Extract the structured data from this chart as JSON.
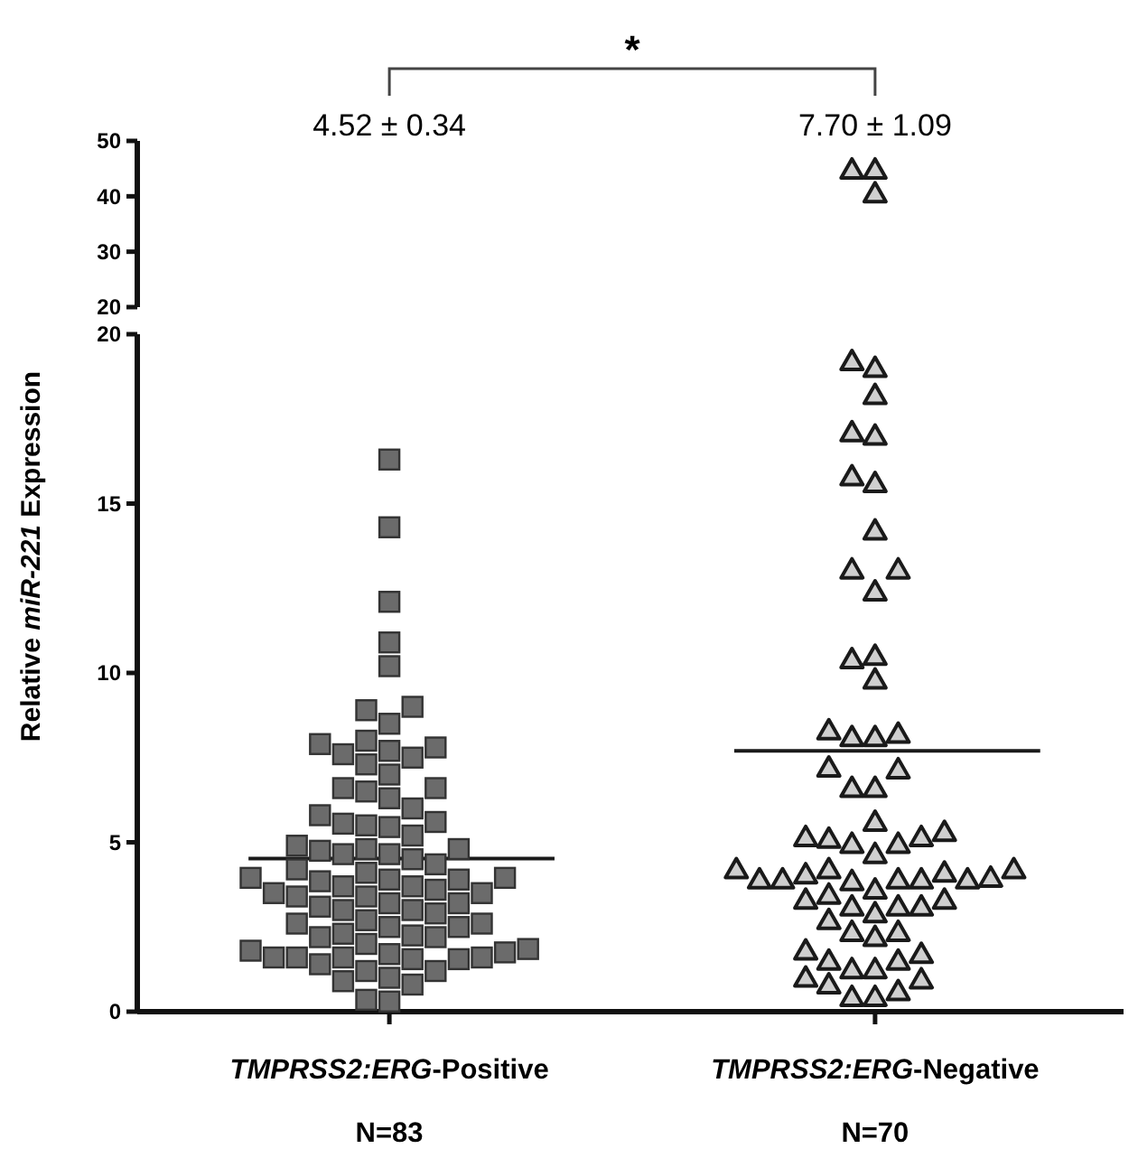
{
  "chart_data": [
    {
      "type": "scatter",
      "categories": [
        "TMPRSS2:ERG-Positive",
        "TMPRSS2:ERG-Negative"
      ],
      "ylim": [
        20,
        50
      ],
      "yticks": [
        20,
        30,
        40,
        50
      ],
      "tick_labels": "y",
      "grid": false,
      "annotations": [
        "*",
        "4.52 ± 0.34",
        "7.70 ± 1.09"
      ],
      "series": [
        {
          "marker": "triangle",
          "color": "#1a1a1a",
          "x": [
            "TMPRSS2:ERG-Negative",
            "TMPRSS2:ERG-Negative",
            "TMPRSS2:ERG-Negative"
          ],
          "values": [
            44.8,
            44.8,
            40.5
          ]
        }
      ]
    },
    {
      "type": "scatter",
      "categories": [
        "TMPRSS2:ERG-Positive",
        "TMPRSS2:ERG-Negative"
      ],
      "ylim": [
        0,
        20
      ],
      "yticks": [
        0,
        5,
        10,
        15,
        20
      ],
      "grid": false,
      "ylabel": "Relative miR-221 Expression",
      "annotations": [
        "N=83",
        "N=70"
      ],
      "ref_lines": [
        {
          "axis": "y",
          "value": 4.52,
          "color": "#1a1a1a"
        },
        {
          "axis": "y",
          "value": 7.7,
          "color": "#1a1a1a"
        }
      ],
      "series": [
        {
          "marker": "square",
          "color": "#6b6b6b",
          "x": [
            "TMPRSS2:ERG-Positive",
            "TMPRSS2:ERG-Positive",
            "TMPRSS2:ERG-Positive",
            "TMPRSS2:ERG-Positive",
            "TMPRSS2:ERG-Positive",
            "TMPRSS2:ERG-Positive",
            "TMPRSS2:ERG-Positive",
            "TMPRSS2:ERG-Positive",
            "TMPRSS2:ERG-Positive",
            "TMPRSS2:ERG-Positive",
            "TMPRSS2:ERG-Positive",
            "TMPRSS2:ERG-Positive",
            "TMPRSS2:ERG-Positive",
            "TMPRSS2:ERG-Positive",
            "TMPRSS2:ERG-Positive",
            "TMPRSS2:ERG-Positive",
            "TMPRSS2:ERG-Positive",
            "TMPRSS2:ERG-Positive",
            "TMPRSS2:ERG-Positive",
            "TMPRSS2:ERG-Positive",
            "TMPRSS2:ERG-Positive",
            "TMPRSS2:ERG-Positive",
            "TMPRSS2:ERG-Positive",
            "TMPRSS2:ERG-Positive",
            "TMPRSS2:ERG-Positive",
            "TMPRSS2:ERG-Positive",
            "TMPRSS2:ERG-Positive",
            "TMPRSS2:ERG-Positive",
            "TMPRSS2:ERG-Positive",
            "TMPRSS2:ERG-Positive",
            "TMPRSS2:ERG-Positive",
            "TMPRSS2:ERG-Positive",
            "TMPRSS2:ERG-Positive",
            "TMPRSS2:ERG-Positive",
            "TMPRSS2:ERG-Positive",
            "TMPRSS2:ERG-Positive",
            "TMPRSS2:ERG-Positive",
            "TMPRSS2:ERG-Positive",
            "TMPRSS2:ERG-Positive",
            "TMPRSS2:ERG-Positive",
            "TMPRSS2:ERG-Positive",
            "TMPRSS2:ERG-Positive",
            "TMPRSS2:ERG-Positive",
            "TMPRSS2:ERG-Positive",
            "TMPRSS2:ERG-Positive",
            "TMPRSS2:ERG-Positive",
            "TMPRSS2:ERG-Positive",
            "TMPRSS2:ERG-Positive",
            "TMPRSS2:ERG-Positive",
            "TMPRSS2:ERG-Positive",
            "TMPRSS2:ERG-Positive",
            "TMPRSS2:ERG-Positive",
            "TMPRSS2:ERG-Positive",
            "TMPRSS2:ERG-Positive",
            "TMPRSS2:ERG-Positive",
            "TMPRSS2:ERG-Positive",
            "TMPRSS2:ERG-Positive",
            "TMPRSS2:ERG-Positive",
            "TMPRSS2:ERG-Positive",
            "TMPRSS2:ERG-Positive",
            "TMPRSS2:ERG-Positive",
            "TMPRSS2:ERG-Positive",
            "TMPRSS2:ERG-Positive",
            "TMPRSS2:ERG-Positive",
            "TMPRSS2:ERG-Positive",
            "TMPRSS2:ERG-Positive",
            "TMPRSS2:ERG-Positive",
            "TMPRSS2:ERG-Positive",
            "TMPRSS2:ERG-Positive",
            "TMPRSS2:ERG-Positive",
            "TMPRSS2:ERG-Positive",
            "TMPRSS2:ERG-Positive",
            "TMPRSS2:ERG-Positive",
            "TMPRSS2:ERG-Positive",
            "TMPRSS2:ERG-Positive",
            "TMPRSS2:ERG-Positive",
            "TMPRSS2:ERG-Positive",
            "TMPRSS2:ERG-Positive",
            "TMPRSS2:ERG-Positive",
            "TMPRSS2:ERG-Positive",
            "TMPRSS2:ERG-Positive",
            "TMPRSS2:ERG-Positive",
            "TMPRSS2:ERG-Positive"
          ],
          "values": [
            0.3,
            0.35,
            0.8,
            1.2,
            1.0,
            1.2,
            0.9,
            1.6,
            1.55,
            1.6,
            1.4,
            1.85,
            1.75,
            1.8,
            1.55,
            2.0,
            1.6,
            1.6,
            1.7,
            2.25,
            2.2,
            2.6,
            2.2,
            2.3,
            2.5,
            2.5,
            2.6,
            3.2,
            3.1,
            3.0,
            2.7,
            2.9,
            3.0,
            3.2,
            3.6,
            3.5,
            3.4,
            3.4,
            3.5,
            3.7,
            3.85,
            3.9,
            3.9,
            3.7,
            3.95,
            3.95,
            4.2,
            4.1,
            4.35,
            4.8,
            4.65,
            4.5,
            4.65,
            4.75,
            4.8,
            4.9,
            5.2,
            5.45,
            5.6,
            5.5,
            5.55,
            6.0,
            5.8,
            6.3,
            6.5,
            6.6,
            6.6,
            7.0,
            7.3,
            7.5,
            7.6,
            7.7,
            7.8,
            7.9,
            8.0,
            8.5,
            8.9,
            9.0,
            10.2,
            10.9,
            12.1,
            14.3,
            16.3
          ]
        },
        {
          "marker": "triangle",
          "color": "#1a1a1a",
          "x": [
            "TMPRSS2:ERG-Negative",
            "TMPRSS2:ERG-Negative",
            "TMPRSS2:ERG-Negative",
            "TMPRSS2:ERG-Negative",
            "TMPRSS2:ERG-Negative",
            "TMPRSS2:ERG-Negative",
            "TMPRSS2:ERG-Negative",
            "TMPRSS2:ERG-Negative",
            "TMPRSS2:ERG-Negative",
            "TMPRSS2:ERG-Negative",
            "TMPRSS2:ERG-Negative",
            "TMPRSS2:ERG-Negative",
            "TMPRSS2:ERG-Negative",
            "TMPRSS2:ERG-Negative",
            "TMPRSS2:ERG-Negative",
            "TMPRSS2:ERG-Negative",
            "TMPRSS2:ERG-Negative",
            "TMPRSS2:ERG-Negative",
            "TMPRSS2:ERG-Negative",
            "TMPRSS2:ERG-Negative",
            "TMPRSS2:ERG-Negative",
            "TMPRSS2:ERG-Negative",
            "TMPRSS2:ERG-Negative",
            "TMPRSS2:ERG-Negative",
            "TMPRSS2:ERG-Negative",
            "TMPRSS2:ERG-Negative",
            "TMPRSS2:ERG-Negative",
            "TMPRSS2:ERG-Negative",
            "TMPRSS2:ERG-Negative",
            "TMPRSS2:ERG-Negative",
            "TMPRSS2:ERG-Negative",
            "TMPRSS2:ERG-Negative",
            "TMPRSS2:ERG-Negative",
            "TMPRSS2:ERG-Negative",
            "TMPRSS2:ERG-Negative",
            "TMPRSS2:ERG-Negative",
            "TMPRSS2:ERG-Negative",
            "TMPRSS2:ERG-Negative",
            "TMPRSS2:ERG-Negative",
            "TMPRSS2:ERG-Negative",
            "TMPRSS2:ERG-Negative",
            "TMPRSS2:ERG-Negative",
            "TMPRSS2:ERG-Negative",
            "TMPRSS2:ERG-Negative",
            "TMPRSS2:ERG-Negative",
            "TMPRSS2:ERG-Negative",
            "TMPRSS2:ERG-Negative",
            "TMPRSS2:ERG-Negative",
            "TMPRSS2:ERG-Negative",
            "TMPRSS2:ERG-Negative",
            "TMPRSS2:ERG-Negative",
            "TMPRSS2:ERG-Negative",
            "TMPRSS2:ERG-Negative",
            "TMPRSS2:ERG-Negative",
            "TMPRSS2:ERG-Negative",
            "TMPRSS2:ERG-Negative",
            "TMPRSS2:ERG-Negative",
            "TMPRSS2:ERG-Negative",
            "TMPRSS2:ERG-Negative",
            "TMPRSS2:ERG-Negative",
            "TMPRSS2:ERG-Negative",
            "TMPRSS2:ERG-Negative",
            "TMPRSS2:ERG-Negative",
            "TMPRSS2:ERG-Negative",
            "TMPRSS2:ERG-Negative",
            "TMPRSS2:ERG-Negative"
          ],
          "values": [
            0.43,
            0.43,
            0.6,
            0.8,
            0.95,
            1.0,
            1.25,
            1.25,
            1.8,
            1.5,
            1.5,
            1.7,
            2.35,
            2.35,
            2.2,
            2.7,
            2.9,
            3.1,
            3.1,
            3.1,
            3.3,
            3.45,
            3.3,
            3.6,
            3.9,
            3.9,
            3.9,
            3.85,
            3.9,
            3.9,
            3.95,
            4.2,
            4.1,
            4.05,
            4.2,
            4.2,
            4.65,
            4.95,
            4.95,
            5.15,
            5.1,
            5.15,
            5.3,
            5.6,
            10.4,
            10.5,
            9.8,
            8.2,
            8.1,
            8.1,
            8.3,
            7.15,
            7.2,
            6.6,
            6.6,
            19.2,
            19.0,
            18.2,
            17.1,
            17.0,
            15.6,
            15.8,
            14.2,
            13.05,
            13.05,
            12.4
          ]
        }
      ]
    }
  ]
}
